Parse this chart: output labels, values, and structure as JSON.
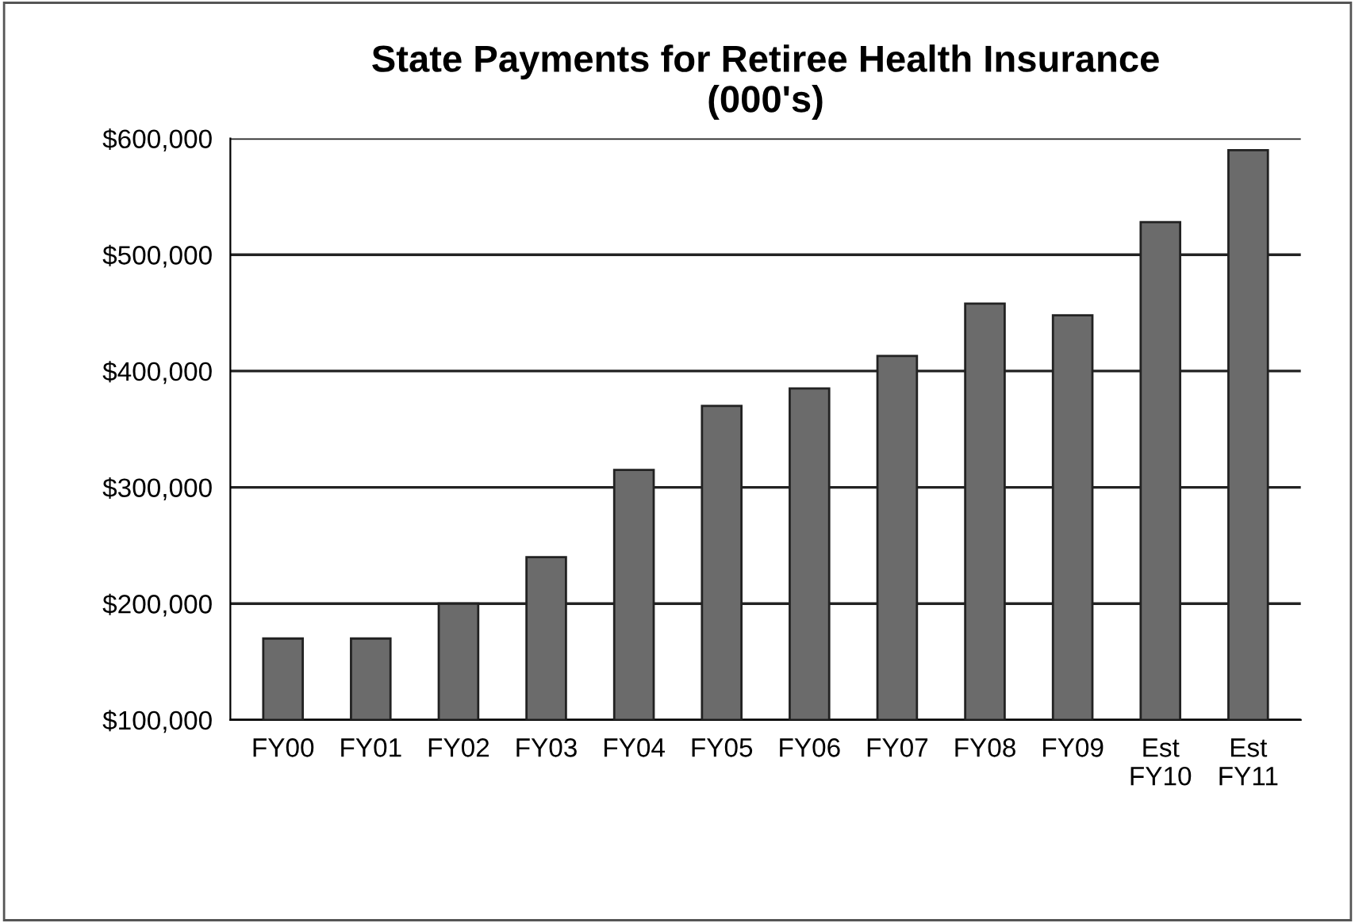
{
  "chart_data": {
    "type": "bar",
    "title": "State Payments for Retiree Health Insurance\n(000's)",
    "categories": [
      "FY00",
      "FY01",
      "FY02",
      "FY03",
      "FY04",
      "FY05",
      "FY06",
      "FY07",
      "FY08",
      "FY09",
      "Est\nFY10",
      "Est\nFY11"
    ],
    "values": [
      170000,
      170000,
      200000,
      240000,
      315000,
      370000,
      385000,
      413000,
      458000,
      448000,
      528000,
      590000
    ],
    "color": "#6b6b6b",
    "ylim": [
      100000,
      600000
    ],
    "yticks": [
      {
        "value": 100000,
        "label": "$100,000"
      },
      {
        "value": 200000,
        "label": "$200,000"
      },
      {
        "value": 300000,
        "label": "$300,000"
      },
      {
        "value": 400000,
        "label": "$400,000"
      },
      {
        "value": 500000,
        "label": "$500,000"
      },
      {
        "value": 600000,
        "label": "$600,000"
      }
    ],
    "grid": "y",
    "legend": false
  }
}
